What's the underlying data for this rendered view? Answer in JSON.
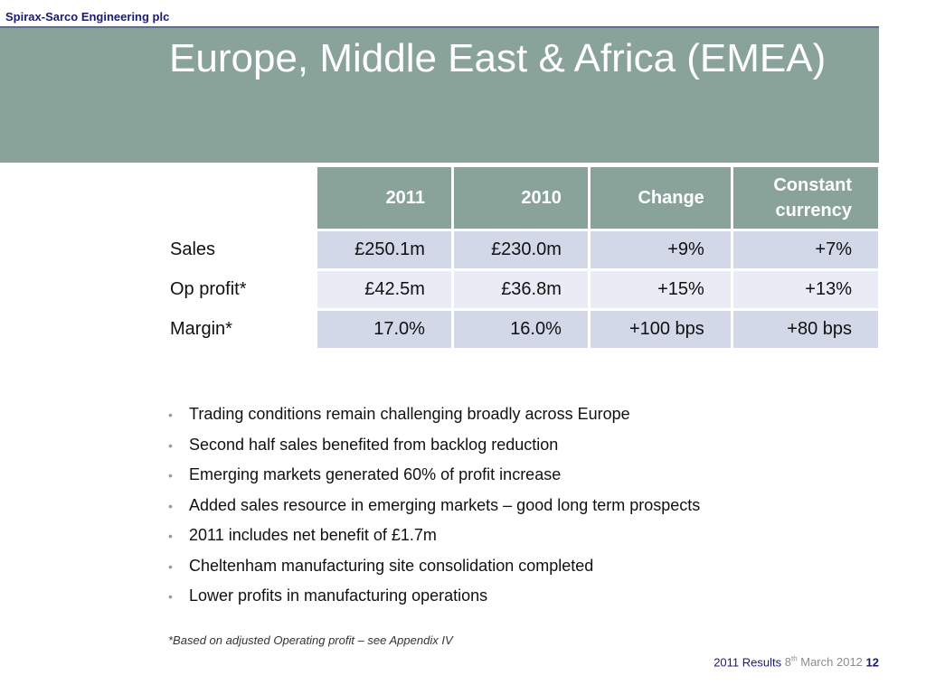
{
  "header": {
    "company": "Spirax-Sarco Engineering plc"
  },
  "slide": {
    "title": "Europe, Middle East & Africa (EMEA)"
  },
  "table": {
    "columns": [
      "2011",
      "2010",
      "Change",
      "Constant",
      "currency"
    ],
    "rows": [
      {
        "label": "Sales",
        "values": [
          "£250.1m",
          "£230.0m",
          "+9%",
          "+7%"
        ]
      },
      {
        "label": "Op profit*",
        "values": [
          "£42.5m",
          "£36.8m",
          "+15%",
          "+13%"
        ]
      },
      {
        "label": "Margin*",
        "values": [
          "17.0%",
          "16.0%",
          "+100 bps",
          "+80 bps"
        ]
      }
    ]
  },
  "bullets": [
    "Trading conditions remain challenging broadly across Europe",
    "Second half sales benefited from backlog reduction",
    "Emerging markets generated 60% of profit increase",
    "Added sales resource in emerging markets – good long term prospects",
    "2011 includes net benefit of £1.7m",
    "Cheltenham manufacturing site consolidation completed",
    "Lower profits in manufacturing operations"
  ],
  "footnote": "*Based on adjusted Operating profit – see Appendix IV",
  "footer": {
    "label": "2011 Results",
    "date_day": "8",
    "date_suffix": "th",
    "date_rest": " March 2012",
    "page": "12"
  },
  "colors": {
    "banner": "#8aa39a",
    "row_dark": "#d3d8e8",
    "row_light": "#e9ecf4",
    "navy": "#1a1a6e"
  }
}
